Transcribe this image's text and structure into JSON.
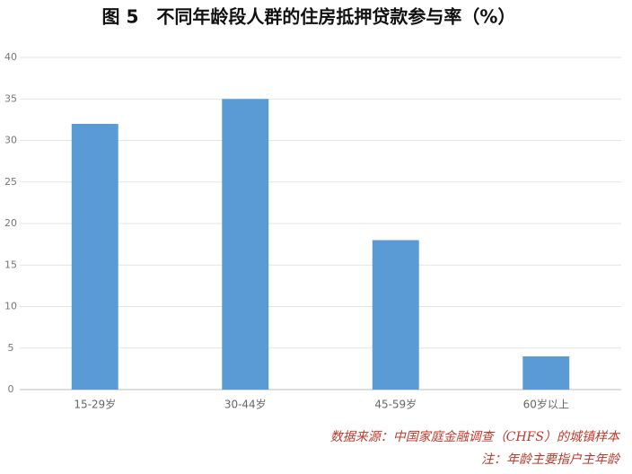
{
  "chart_data": {
    "type": "bar",
    "title": "图 5　不同年龄段人群的住房抵押贷款参与率（%）",
    "categories": [
      "15-29岁",
      "30-44岁",
      "45-59岁",
      "60岁以上"
    ],
    "values": [
      32,
      35,
      18,
      4
    ],
    "color": "#5b9bd5",
    "ylim": [
      0,
      40
    ],
    "yticks": [
      0,
      5,
      10,
      15,
      20,
      25,
      30,
      35,
      40
    ],
    "grid": true,
    "notes": [
      "数据来源：中国家庭金融调查（CHFS）的城镇样本",
      "注：年龄主要指户主年龄"
    ]
  }
}
